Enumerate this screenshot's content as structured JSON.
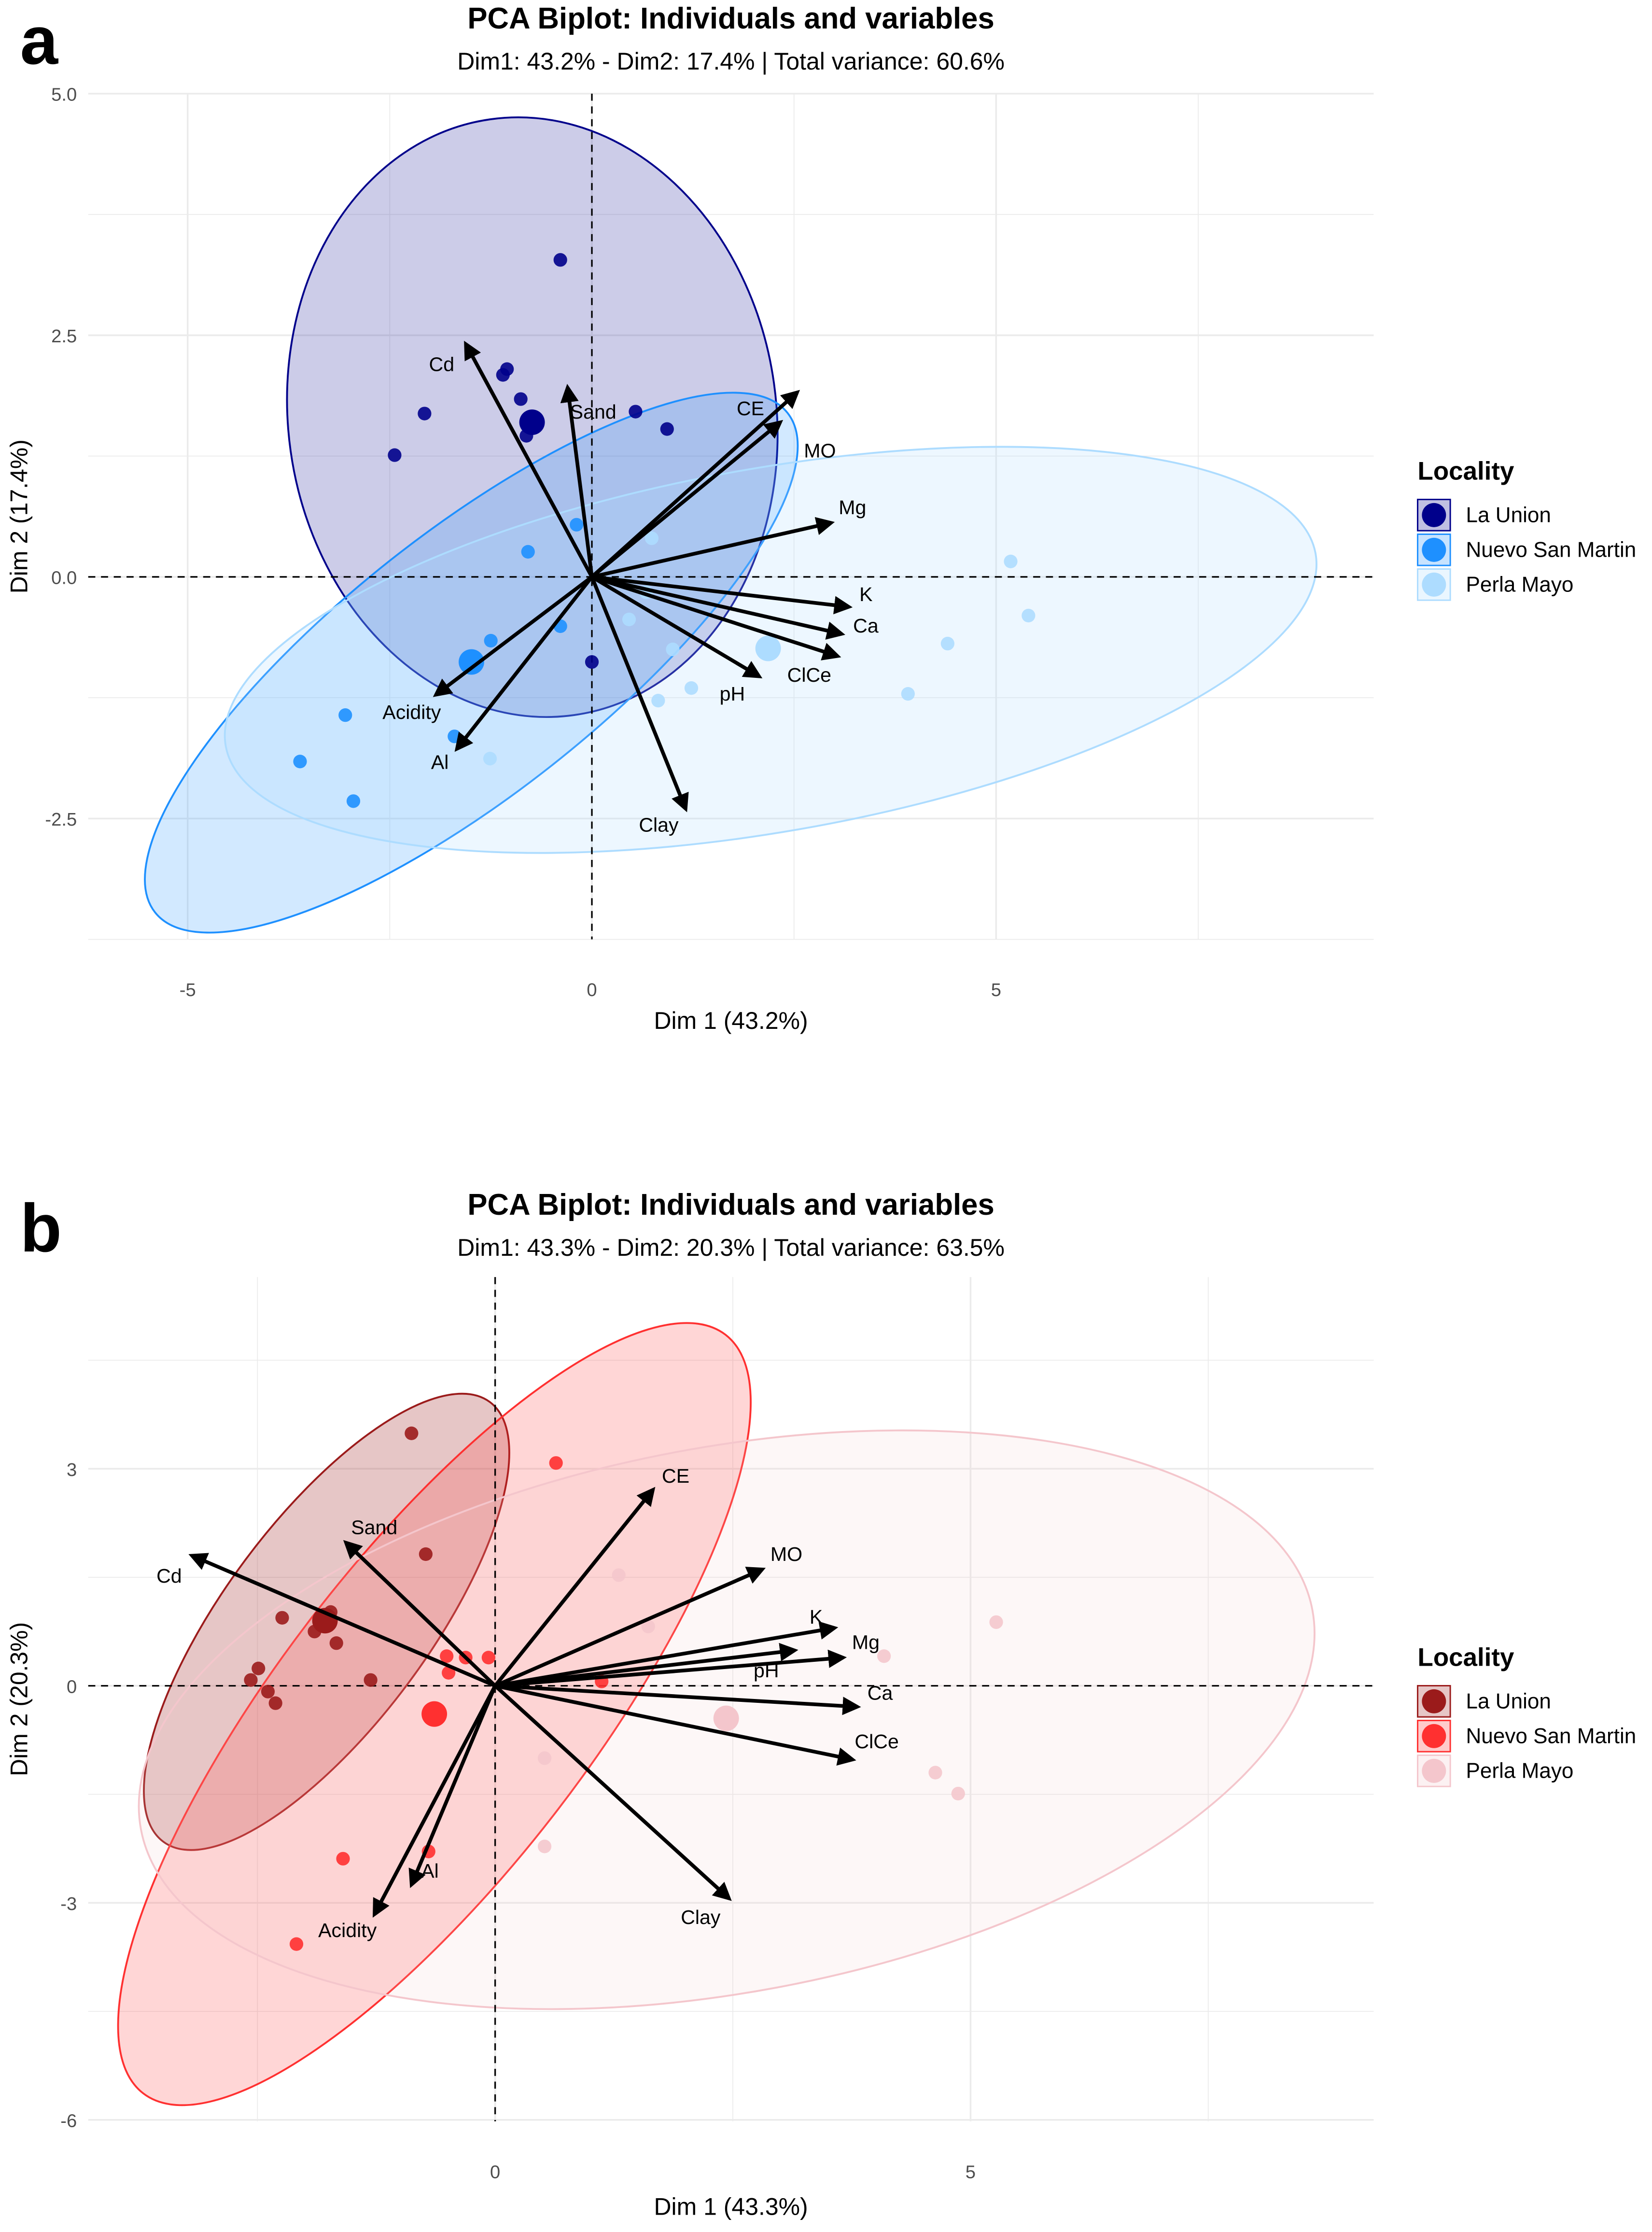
{
  "chart_data": [
    {
      "panel_label": "a",
      "type": "scatter",
      "title": "PCA Biplot: Individuals and variables",
      "subtitle": "Dim1: 43.2% - Dim2: 17.4% | Total variance: 60.6%",
      "xlabel": "Dim 1 (43.2%)",
      "ylabel": "Dim 2 (17.4%)",
      "xlim": [
        -6.23,
        9.67
      ],
      "ylim": [
        -3.75,
        5.0
      ],
      "xticks": [
        -5,
        0,
        5
      ],
      "xtick_labels": [
        "-5",
        "0",
        "5"
      ],
      "yticks": [
        -2.5,
        0,
        2.5,
        5
      ],
      "ytick_labels": [
        "-2.5",
        "0.0",
        "2.5",
        "5.0"
      ],
      "grid": true,
      "legend_position": "right",
      "legend_title": "Locality",
      "series": [
        {
          "name": "La Union",
          "color": "#00008B",
          "points": [
            [
              -0.39,
              3.28
            ],
            [
              -1.05,
              2.15
            ],
            [
              -1.1,
              2.09
            ],
            [
              -0.88,
              1.84
            ],
            [
              -0.81,
              1.46
            ],
            [
              -2.07,
              1.69
            ],
            [
              -2.44,
              1.26
            ],
            [
              0.54,
              1.71
            ],
            [
              0.93,
              1.53
            ],
            [
              0,
              -0.88
            ]
          ],
          "centroid": [
            -0.74,
            1.6
          ]
        },
        {
          "name": "Nuevo San Martin",
          "color": "#1E90FF",
          "points": [
            [
              -0.19,
              0.54
            ],
            [
              -0.79,
              0.26
            ],
            [
              -0.39,
              -0.51
            ],
            [
              -1.25,
              -0.66
            ],
            [
              -3.05,
              -1.43
            ],
            [
              -3.61,
              -1.91
            ],
            [
              -2.95,
              -2.32
            ],
            [
              -1.7,
              -1.65
            ]
          ],
          "centroid": [
            -1.49,
            -0.88
          ]
        },
        {
          "name": "Perla Mayo",
          "color": "#ADDCFF",
          "points": [
            [
              0.74,
              0.4
            ],
            [
              0.46,
              -0.44
            ],
            [
              1.0,
              -0.75
            ],
            [
              1.23,
              -1.15
            ],
            [
              0.82,
              -1.28
            ],
            [
              -1.26,
              -1.88
            ],
            [
              3.91,
              -1.21
            ],
            [
              4.4,
              -0.69
            ],
            [
              5.18,
              0.16
            ],
            [
              5.4,
              -0.4
            ],
            [
              0.67,
              -0.16
            ]
          ],
          "centroid": [
            2.18,
            -0.74
          ]
        }
      ],
      "variables": [
        {
          "name": "Cd",
          "x": -1.56,
          "y": 2.41
        },
        {
          "name": "Sand",
          "x": -0.3,
          "y": 1.96
        },
        {
          "name": "CE",
          "x": 2.33,
          "y": 1.6
        },
        {
          "name": "MO",
          "x": 2.54,
          "y": 1.91
        },
        {
          "name": "Mg",
          "x": 2.96,
          "y": 0.56
        },
        {
          "name": "K",
          "x": 3.18,
          "y": -0.31
        },
        {
          "name": "Ca",
          "x": 3.09,
          "y": -0.59
        },
        {
          "name": "ClCe",
          "x": 3.04,
          "y": -0.82
        },
        {
          "name": "pH",
          "x": 2.07,
          "y": -1.03
        },
        {
          "name": "Clay",
          "x": 1.16,
          "y": -2.4
        },
        {
          "name": "Acidity",
          "x": -1.93,
          "y": -1.22
        },
        {
          "name": "Al",
          "x": -1.67,
          "y": -1.78
        }
      ]
    },
    {
      "panel_label": "b",
      "type": "scatter",
      "title": "PCA Biplot: Individuals and variables",
      "subtitle": "Dim1: 43.3% - Dim2: 20.3% | Total variance: 63.5%",
      "xlabel": "Dim 1 (43.3%)",
      "ylabel": "Dim 2 (20.3%)",
      "xlim": [
        -4.28,
        9.24
      ],
      "ylim": [
        -6.02,
        5.65
      ],
      "xticks": [
        0,
        5
      ],
      "xtick_labels": [
        "0",
        "5"
      ],
      "yticks": [
        -6,
        -3,
        0,
        3
      ],
      "ytick_labels": [
        "-6",
        "-3",
        "0",
        "3"
      ],
      "grid": true,
      "legend_position": "right",
      "legend_title": "Locality",
      "series": [
        {
          "name": "La Union",
          "color": "#9B1B1B",
          "points": [
            [
              -0.88,
              3.49
            ],
            [
              -0.73,
              1.82
            ],
            [
              -1.73,
              1.02
            ],
            [
              -2.24,
              0.94
            ],
            [
              -1.9,
              0.75
            ],
            [
              -1.67,
              0.59
            ],
            [
              -1.31,
              0.08
            ],
            [
              -2.49,
              0.24
            ],
            [
              -2.57,
              0.08
            ],
            [
              -2.39,
              -0.08
            ],
            [
              -2.31,
              -0.24
            ]
          ],
          "centroid": [
            -1.79,
            0.9
          ]
        },
        {
          "name": "Nuevo San Martin",
          "color": "#FF3030",
          "points": [
            [
              0.64,
              3.08
            ],
            [
              -0.51,
              0.41
            ],
            [
              -0.31,
              0.39
            ],
            [
              -0.07,
              0.39
            ],
            [
              -0.49,
              0.18
            ],
            [
              1.12,
              0.06
            ],
            [
              -0.7,
              -2.29
            ],
            [
              -1.6,
              -2.39
            ],
            [
              -2.09,
              -3.57
            ]
          ],
          "centroid": [
            -0.64,
            -0.39
          ]
        },
        {
          "name": "Perla Mayo",
          "color": "#F4C6CC",
          "points": [
            [
              1.3,
              1.53
            ],
            [
              1.61,
              0.82
            ],
            [
              4.09,
              0.41
            ],
            [
              5.27,
              0.88
            ],
            [
              0.52,
              -1.0
            ],
            [
              0.52,
              -2.22
            ],
            [
              4.63,
              -1.2
            ],
            [
              4.87,
              -1.49
            ]
          ],
          "centroid": [
            2.43,
            -0.45
          ]
        }
      ],
      "variables": [
        {
          "name": "CE",
          "x": 1.66,
          "y": 2.71
        },
        {
          "name": "MO",
          "x": 2.81,
          "y": 1.61
        },
        {
          "name": "K",
          "x": 3.57,
          "y": 0.8
        },
        {
          "name": "Mg",
          "x": 3.66,
          "y": 0.39
        },
        {
          "name": "pH",
          "x": 3.15,
          "y": 0.49
        },
        {
          "name": "Ca",
          "x": 3.81,
          "y": -0.29
        },
        {
          "name": "ClCe",
          "x": 3.76,
          "y": -1.02
        },
        {
          "name": "Clay",
          "x": 2.46,
          "y": -2.94
        },
        {
          "name": "Al",
          "x": -0.88,
          "y": -2.75
        },
        {
          "name": "Acidity",
          "x": -1.27,
          "y": -3.16
        },
        {
          "name": "Cd",
          "x": -3.19,
          "y": 1.8
        },
        {
          "name": "Sand",
          "x": -1.57,
          "y": 1.98
        }
      ]
    }
  ]
}
